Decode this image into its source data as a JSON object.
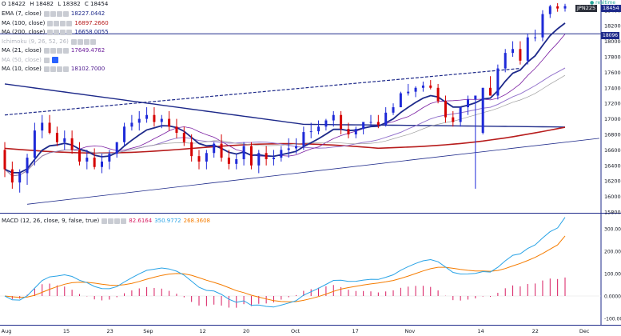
{
  "ohlc": {
    "o": "O 18422",
    "h": "H 18482",
    "l": "L 18382",
    "c": "C 18454"
  },
  "symbol": "JPN225",
  "last_price": "18454",
  "realtime_label": "realtime",
  "level_tag": "18096",
  "indicators": [
    {
      "label": "EMA (7, close)",
      "value": "18227.0442",
      "color": "#1e2a8a",
      "dim": false
    },
    {
      "label": "MA (100, close)",
      "value": "16897.2660",
      "color": "#b71c1c",
      "dim": false
    },
    {
      "label": "MA (200, close)",
      "value": "16658.0055",
      "color": "#1e2a8a",
      "dim": false
    },
    {
      "label": "Ichimoku (9, 26, 52, 26)",
      "value": "",
      "color": "#b2b5be",
      "dim": true
    },
    {
      "label": "MA (21, close)",
      "value": "17649.4762",
      "color": "#6a1b9a",
      "dim": false
    },
    {
      "label": "MA (50, close)",
      "value": "",
      "color": "#b2b5be",
      "dim": true
    },
    {
      "label": "MA (10, close)",
      "value": "18102.7000",
      "color": "#4a148c",
      "dim": false
    }
  ],
  "macd": {
    "label": "MACD (12, 26, close, 9, false, true)",
    "hist_value": "82.6164",
    "macd_value": "350.9772",
    "signal_value": "268.3608",
    "hist_color": "#d81b60",
    "macd_color": "#29a3e6",
    "signal_color": "#f57c00"
  },
  "price_axis_labels": [
    "18400",
    "18200",
    "18000",
    "17800",
    "17600",
    "17400",
    "17200",
    "17000",
    "16800",
    "16600",
    "16400",
    "16200",
    "16000",
    "15800"
  ],
  "macd_axis_labels": [
    "300.0000",
    "200.0000",
    "100.0000",
    "0.0000",
    "-100.0000"
  ],
  "date_labels": [
    "Aug",
    "15",
    "23",
    "Sep",
    "12",
    "20",
    "Oct",
    "17",
    "Nov",
    "14",
    "22",
    "Dec"
  ],
  "chart_data": {
    "type": "candlestick",
    "x": [
      "Aug 4",
      "Aug 5",
      "Aug 8",
      "Aug 9",
      "Aug 10",
      "Aug 12",
      "Aug 15",
      "Aug 16",
      "Aug 17",
      "Aug 18",
      "Aug 19",
      "Aug 22",
      "Aug 23",
      "Aug 24",
      "Aug 25",
      "Aug 26",
      "Aug 29",
      "Aug 30",
      "Aug 31",
      "Sep 1",
      "Sep 2",
      "Sep 5",
      "Sep 6",
      "Sep 7",
      "Sep 8",
      "Sep 9",
      "Sep 12",
      "Sep 13",
      "Sep 14",
      "Sep 15",
      "Sep 16",
      "Sep 20",
      "Sep 21",
      "Sep 23",
      "Sep 26",
      "Sep 27",
      "Sep 28",
      "Sep 29",
      "Sep 30",
      "Oct 3",
      "Oct 4",
      "Oct 5",
      "Oct 6",
      "Oct 7",
      "Oct 11",
      "Oct 12",
      "Oct 13",
      "Oct 14",
      "Oct 17",
      "Oct 18",
      "Oct 19",
      "Oct 20",
      "Oct 21",
      "Oct 24",
      "Oct 25",
      "Oct 26",
      "Oct 27",
      "Oct 28",
      "Oct 31",
      "Nov 1",
      "Nov 2",
      "Nov 4",
      "Nov 7",
      "Nov 8",
      "Nov 9",
      "Nov 10",
      "Nov 11",
      "Nov 14",
      "Nov 15",
      "Nov 16",
      "Nov 17",
      "Nov 18",
      "Nov 21",
      "Nov 22",
      "Nov 24",
      "Nov 25"
    ],
    "open": [
      16600,
      16350,
      16180,
      16300,
      16500,
      16850,
      16950,
      16820,
      16700,
      16750,
      16600,
      16450,
      16500,
      16380,
      16450,
      16550,
      16700,
      16900,
      16950,
      17000,
      17050,
      16960,
      17000,
      16900,
      16820,
      16700,
      16520,
      16450,
      16560,
      16680,
      16500,
      16420,
      16480,
      16650,
      16400,
      16560,
      16480,
      16500,
      16600,
      16620,
      16650,
      16830,
      16840,
      16900,
      16980,
      17050,
      16870,
      16800,
      16870,
      16960,
      16960,
      16920,
      17080,
      17150,
      17330,
      17350,
      17400,
      17430,
      17400,
      17230,
      17020,
      16960,
      17150,
      17250,
      16820,
      17400,
      17300,
      17650,
      17850,
      17900,
      17750,
      18050,
      18050,
      18350,
      18450,
      18422
    ],
    "high": [
      16700,
      16450,
      16350,
      16550,
      16950,
      17050,
      17050,
      16900,
      16850,
      16850,
      16700,
      16600,
      16620,
      16550,
      16600,
      16700,
      16950,
      17050,
      17100,
      17150,
      17150,
      17050,
      17100,
      17000,
      16900,
      16800,
      16600,
      16600,
      16700,
      16800,
      16600,
      16550,
      16700,
      16700,
      16600,
      16650,
      16600,
      16650,
      16750,
      16750,
      16900,
      16950,
      16980,
      17000,
      17100,
      17100,
      16950,
      16900,
      16950,
      17050,
      17050,
      17150,
      17200,
      17350,
      17450,
      17420,
      17480,
      17500,
      17450,
      17300,
      17100,
      17150,
      17300,
      17280,
      17400,
      17550,
      17700,
      17900,
      18000,
      18000,
      18100,
      18150,
      18400,
      18470,
      18490,
      18482
    ],
    "low": [
      16250,
      16100,
      16050,
      16150,
      16400,
      16750,
      16800,
      16650,
      16600,
      16550,
      16400,
      16350,
      16350,
      16300,
      16350,
      16500,
      16650,
      16850,
      16850,
      16950,
      16900,
      16880,
      16850,
      16750,
      16650,
      16450,
      16350,
      16350,
      16500,
      16450,
      16350,
      16350,
      16400,
      16350,
      16300,
      16400,
      16400,
      16450,
      16500,
      16550,
      16600,
      16750,
      16800,
      16850,
      16900,
      16800,
      16750,
      16750,
      16800,
      16900,
      16880,
      16900,
      17050,
      17150,
      17300,
      17280,
      17350,
      17380,
      17200,
      16950,
      16900,
      16900,
      17050,
      16100,
      16800,
      17300,
      17250,
      17600,
      17800,
      17700,
      17700,
      18000,
      18000,
      18300,
      18380,
      18382
    ],
    "close": [
      16350,
      16180,
      16300,
      16500,
      16850,
      16950,
      16820,
      16700,
      16750,
      16600,
      16450,
      16500,
      16380,
      16450,
      16550,
      16700,
      16900,
      16950,
      17000,
      17050,
      16960,
      17000,
      16900,
      16820,
      16700,
      16520,
      16450,
      16560,
      16680,
      16500,
      16420,
      16480,
      16650,
      16400,
      16560,
      16480,
      16500,
      16600,
      16620,
      16650,
      16830,
      16840,
      16900,
      16980,
      17050,
      16870,
      16800,
      16870,
      16960,
      16960,
      16920,
      17080,
      17150,
      17330,
      17350,
      17400,
      17430,
      17400,
      17230,
      17020,
      16960,
      17150,
      17250,
      17300,
      17400,
      17300,
      17650,
      17850,
      17900,
      17750,
      18050,
      18050,
      18350,
      18450,
      18422,
      18454
    ],
    "ylim": [
      15800,
      18480
    ],
    "overlays": {
      "ema7_last": 18227.0442,
      "ma100_last": 16897.266,
      "ma200_last": 16658.0055,
      "ma21_last": 17649.4762,
      "ma10_last": 18102.7
    },
    "macd_panel": {
      "ylim": [
        -100,
        350
      ],
      "macd_last": 350.9772,
      "signal_last": 268.3608,
      "hist_last": 82.6164
    }
  }
}
